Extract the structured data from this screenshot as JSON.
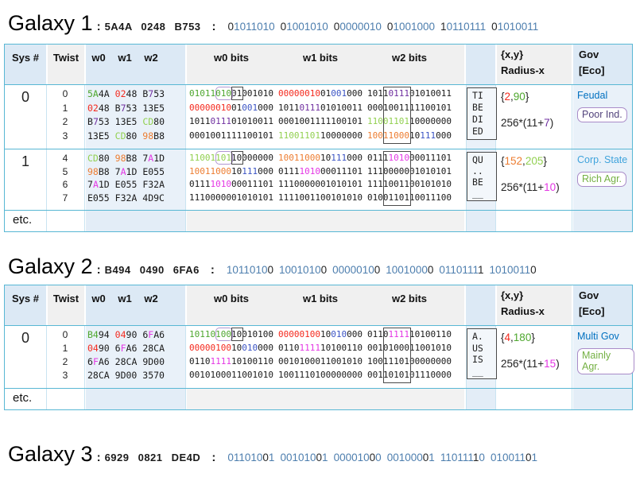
{
  "colon": ":",
  "colors": {
    "green": "#4EA72E",
    "lgreen": "#92D050",
    "red": "#F42A1E",
    "orange": "#ED7D31",
    "purple": "#7030A0",
    "magenta": "#E437E4",
    "blue": "#3B54C4",
    "steel": "#4D7EAE",
    "black": "#262626",
    "govblue": "#0070C0",
    "govlt": "#3FA3DC",
    "ecoPurple": "#52437C",
    "ecoGreen": "#74B043"
  },
  "table_header": {
    "sys": "Sys #",
    "twist": "Twist",
    "w": [
      "w0",
      "w1",
      "w2"
    ],
    "wbits": [
      "w0 bits",
      "w1 bits",
      "w2 bits"
    ],
    "xy": "{x,y}",
    "radius": "Radius-x",
    "gov": "Gov",
    "eco": "[Eco]"
  },
  "galaxies": [
    {
      "name": "Galaxy 1",
      "hex": "5A4A 0248 B753",
      "black_bit": 0,
      "bits": [
        "01011010",
        "01001010",
        "00000010",
        "01001000",
        "10110111",
        "01010011"
      ],
      "table": {
        "etc": "etc.",
        "blocks": [
          {
            "sys": "0",
            "rows": [
              {
                "twist": "0",
                "vals": [
                  [
                    "5A4A",
                    [
                      [
                        0,
                        2,
                        "green"
                      ]
                    ]
                  ],
                  [
                    "0248",
                    [
                      [
                        0,
                        2,
                        "red"
                      ]
                    ]
                  ],
                  [
                    "B753",
                    [
                      [
                        1,
                        2,
                        "purple"
                      ]
                    ]
                  ]
                ],
                "bits": [
                  [
                    "0101101001001010",
                    [
                      [
                        0,
                        8,
                        "green"
                      ]
                    ]
                  ],
                  [
                    "0000001001001000",
                    [
                      [
                        0,
                        8,
                        "red"
                      ],
                      [
                        10,
                        13,
                        "blue"
                      ]
                    ]
                  ],
                  [
                    "1011011101010011",
                    [
                      [
                        4,
                        8,
                        "purple"
                      ]
                    ]
                  ]
                ]
              },
              {
                "twist": "1",
                "vals": [
                  [
                    "0248",
                    [
                      [
                        0,
                        2,
                        "red"
                      ]
                    ]
                  ],
                  [
                    "B753",
                    [
                      [
                        1,
                        2,
                        "purple"
                      ]
                    ]
                  ],
                  [
                    "13E5",
                    []
                  ]
                ],
                "bits": [
                  [
                    "0000001001001000",
                    [
                      [
                        0,
                        8,
                        "red"
                      ],
                      [
                        10,
                        13,
                        "blue"
                      ]
                    ]
                  ],
                  [
                    "1011011101010011",
                    [
                      [
                        4,
                        8,
                        "purple"
                      ]
                    ]
                  ],
                  [
                    "0001001111100101",
                    []
                  ]
                ]
              },
              {
                "twist": "2",
                "vals": [
                  [
                    "B753",
                    [
                      [
                        1,
                        2,
                        "purple"
                      ]
                    ]
                  ],
                  [
                    "13E5",
                    []
                  ],
                  [
                    "CD80",
                    [
                      [
                        0,
                        2,
                        "lgreen"
                      ]
                    ]
                  ]
                ],
                "bits": [
                  [
                    "1011011101010011",
                    [
                      [
                        4,
                        8,
                        "purple"
                      ]
                    ]
                  ],
                  [
                    "0001001111100101",
                    []
                  ],
                  [
                    "1100110110000000",
                    [
                      [
                        0,
                        8,
                        "lgreen"
                      ]
                    ]
                  ]
                ]
              },
              {
                "twist": "3",
                "vals": [
                  [
                    "13E5",
                    []
                  ],
                  [
                    "CD80",
                    [
                      [
                        0,
                        2,
                        "lgreen"
                      ]
                    ]
                  ],
                  [
                    "98B8",
                    [
                      [
                        0,
                        2,
                        "orange"
                      ]
                    ]
                  ]
                ],
                "bits": [
                  [
                    "0001001111100101",
                    []
                  ],
                  [
                    "1100110110000000",
                    [
                      [
                        0,
                        8,
                        "lgreen"
                      ]
                    ]
                  ],
                  [
                    "1001100010111000",
                    [
                      [
                        0,
                        8,
                        "orange"
                      ],
                      [
                        10,
                        13,
                        "blue"
                      ]
                    ]
                  ]
                ]
              }
            ],
            "name": [
              "TI",
              "BE",
              "DI",
              "ED"
            ],
            "xy": {
              "x": "2",
              "xc": "red",
              "y": "90",
              "yc": "green"
            },
            "radius": {
              "pre": "256*(11+",
              "n": "7",
              "nc": "purple",
              "post": ")"
            },
            "gov": {
              "t": "Feudal",
              "c": "govblue"
            },
            "eco": {
              "t": "Poor Ind.",
              "c": "ecoPurple"
            }
          },
          {
            "sys": "1",
            "rows": [
              {
                "twist": "4",
                "vals": [
                  [
                    "CD80",
                    [
                      [
                        0,
                        2,
                        "lgreen"
                      ]
                    ]
                  ],
                  [
                    "98B8",
                    [
                      [
                        0,
                        2,
                        "orange"
                      ]
                    ]
                  ],
                  [
                    "7A1D",
                    [
                      [
                        1,
                        2,
                        "magenta"
                      ]
                    ]
                  ]
                ],
                "bits": [
                  [
                    "1100110110000000",
                    [
                      [
                        0,
                        8,
                        "lgreen"
                      ]
                    ]
                  ],
                  [
                    "1001100010111000",
                    [
                      [
                        0,
                        8,
                        "orange"
                      ],
                      [
                        10,
                        13,
                        "blue"
                      ]
                    ]
                  ],
                  [
                    "0111101000011101",
                    [
                      [
                        4,
                        8,
                        "magenta"
                      ]
                    ]
                  ]
                ]
              },
              {
                "twist": "5",
                "vals": [
                  [
                    "98B8",
                    [
                      [
                        0,
                        2,
                        "orange"
                      ]
                    ]
                  ],
                  [
                    "7A1D",
                    [
                      [
                        1,
                        2,
                        "magenta"
                      ]
                    ]
                  ],
                  [
                    "E055",
                    []
                  ]
                ],
                "bits": [
                  [
                    "1001100010111000",
                    [
                      [
                        0,
                        8,
                        "orange"
                      ],
                      [
                        10,
                        13,
                        "blue"
                      ]
                    ]
                  ],
                  [
                    "0111101000011101",
                    [
                      [
                        4,
                        8,
                        "magenta"
                      ]
                    ]
                  ],
                  [
                    "1110000001010101",
                    []
                  ]
                ]
              },
              {
                "twist": "6",
                "vals": [
                  [
                    "7A1D",
                    [
                      [
                        1,
                        2,
                        "magenta"
                      ]
                    ]
                  ],
                  [
                    "E055",
                    []
                  ],
                  [
                    "F32A",
                    []
                  ]
                ],
                "bits": [
                  [
                    "0111101000011101",
                    [
                      [
                        4,
                        8,
                        "magenta"
                      ]
                    ]
                  ],
                  [
                    "1110000001010101",
                    []
                  ],
                  [
                    "1111001100101010",
                    []
                  ]
                ]
              },
              {
                "twist": "7",
                "vals": [
                  [
                    "E055",
                    []
                  ],
                  [
                    "F32A",
                    []
                  ],
                  [
                    "4D9C",
                    []
                  ]
                ],
                "bits": [
                  [
                    "1110000001010101",
                    []
                  ],
                  [
                    "1111001100101010",
                    []
                  ],
                  [
                    "0100110110011100",
                    []
                  ]
                ]
              }
            ],
            "name": [
              "QU",
              "..",
              "BE",
              "__"
            ],
            "xy": {
              "x": "152",
              "xc": "orange",
              "y": "205",
              "yc": "lgreen"
            },
            "radius": {
              "pre": "256*(11+",
              "n": "10",
              "nc": "magenta",
              "post": ")"
            },
            "gov": {
              "t": "Corp. State",
              "c": "govlt"
            },
            "eco": {
              "t": "Rich Agr.",
              "c": "ecoGreen"
            }
          }
        ]
      }
    },
    {
      "name": "Galaxy 2",
      "hex": "B494 0490 6FA6",
      "black_bit": 7,
      "bits": [
        "10110100",
        "10010100",
        "00000100",
        "10010000",
        "01101111",
        "10100110"
      ],
      "table": {
        "etc": "etc.",
        "blocks": [
          {
            "sys": "0",
            "rows": [
              {
                "twist": "0",
                "vals": [
                  [
                    "B494",
                    [
                      [
                        0,
                        2,
                        "green"
                      ]
                    ]
                  ],
                  [
                    "0490",
                    [
                      [
                        0,
                        2,
                        "red"
                      ]
                    ]
                  ],
                  [
                    "6FA6",
                    [
                      [
                        1,
                        2,
                        "magenta"
                      ]
                    ]
                  ]
                ],
                "bits": [
                  [
                    "1011010010010100",
                    [
                      [
                        0,
                        8,
                        "green"
                      ]
                    ]
                  ],
                  [
                    "0000010010010000",
                    [
                      [
                        0,
                        8,
                        "red"
                      ],
                      [
                        10,
                        13,
                        "blue"
                      ]
                    ]
                  ],
                  [
                    "0110111110100110",
                    [
                      [
                        4,
                        8,
                        "magenta"
                      ]
                    ]
                  ]
                ]
              },
              {
                "twist": "1",
                "vals": [
                  [
                    "0490",
                    [
                      [
                        0,
                        2,
                        "red"
                      ]
                    ]
                  ],
                  [
                    "6FA6",
                    [
                      [
                        1,
                        2,
                        "magenta"
                      ]
                    ]
                  ],
                  [
                    "28CA",
                    []
                  ]
                ],
                "bits": [
                  [
                    "0000010010010000",
                    [
                      [
                        0,
                        8,
                        "red"
                      ],
                      [
                        10,
                        13,
                        "blue"
                      ]
                    ]
                  ],
                  [
                    "0110111110100110",
                    [
                      [
                        4,
                        8,
                        "magenta"
                      ]
                    ]
                  ],
                  [
                    "0010100011001010",
                    []
                  ]
                ]
              },
              {
                "twist": "2",
                "vals": [
                  [
                    "6FA6",
                    [
                      [
                        1,
                        2,
                        "magenta"
                      ]
                    ]
                  ],
                  [
                    "28CA",
                    []
                  ],
                  [
                    "9D00",
                    []
                  ]
                ],
                "bits": [
                  [
                    "0110111110100110",
                    [
                      [
                        4,
                        8,
                        "magenta"
                      ]
                    ]
                  ],
                  [
                    "0010100011001010",
                    []
                  ],
                  [
                    "1001110100000000",
                    []
                  ]
                ]
              },
              {
                "twist": "3",
                "vals": [
                  [
                    "28CA",
                    []
                  ],
                  [
                    "9D00",
                    []
                  ],
                  [
                    "3570",
                    []
                  ]
                ],
                "bits": [
                  [
                    "0010100011001010",
                    []
                  ],
                  [
                    "1001110100000000",
                    []
                  ],
                  [
                    "0011010101110000",
                    []
                  ]
                ]
              }
            ],
            "name": [
              "A.",
              "US",
              "IS",
              "__"
            ],
            "xy": {
              "x": "4",
              "xc": "red",
              "y": "180",
              "yc": "green"
            },
            "radius": {
              "pre": "256*(11+",
              "n": "15",
              "nc": "magenta",
              "post": ")"
            },
            "gov": {
              "t": "Multi Gov",
              "c": "govblue"
            },
            "eco": {
              "t": "Mainly Agr.",
              "c": "ecoGreen"
            }
          }
        ]
      }
    },
    {
      "name": "Galaxy 3",
      "hex": "6929 0821 DE4D",
      "black_bit": 6,
      "bits": [
        "01101001",
        "00101001",
        "00001000",
        "00100001",
        "11011110",
        "01001101"
      ]
    }
  ]
}
